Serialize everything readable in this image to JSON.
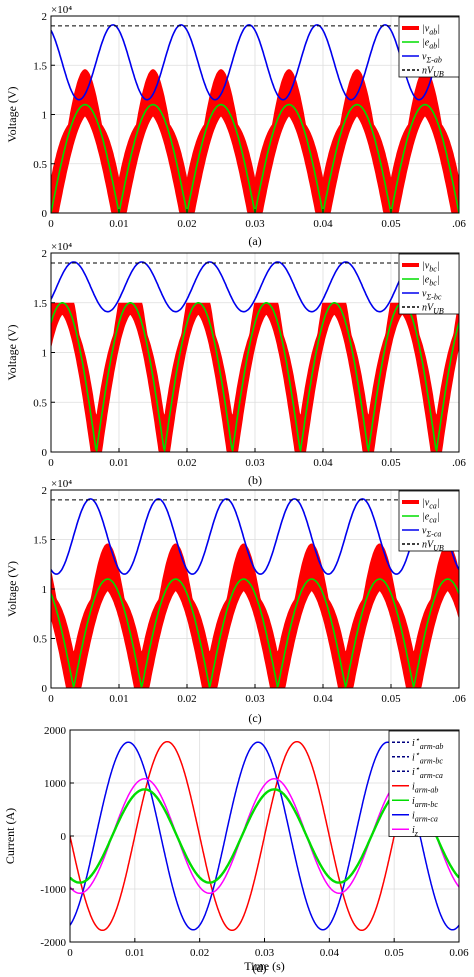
{
  "chart_data": [
    {
      "type": "line",
      "caption": "(a)",
      "ylabel": "Voltage (V)",
      "exponent": "×10⁴",
      "xlim": [
        0,
        0.06
      ],
      "ylim": [
        0,
        2
      ],
      "xticks": [
        0,
        0.01,
        0.02,
        0.03,
        0.04,
        0.05,
        0.06
      ],
      "xtick_labels": [
        "0",
        "0.01",
        "0.02",
        "0.03",
        "0.04",
        "0.05",
        ".06"
      ],
      "yticks": [
        0,
        0.5,
        1,
        1.5,
        2
      ],
      "ytick_labels": [
        "0",
        "0.5",
        "1",
        "1.5",
        "2"
      ],
      "phase_deg": 0,
      "nVUB": 1.9,
      "grid": true,
      "legend_position": "top-right",
      "legend": [
        {
          "label": "|v_ab|",
          "color": "#ff0000",
          "style": "thick"
        },
        {
          "label": "|e_ab|",
          "color": "#00dd00",
          "style": "solid"
        },
        {
          "label": "v_Σ-ab",
          "color": "#0000ee",
          "style": "solid"
        },
        {
          "label": "nV_UB",
          "color": "#000000",
          "style": "dashed"
        }
      ],
      "series_params": {
        "v_sigma": {
          "offset": 1.53,
          "amplitude": 0.38,
          "period": 0.01
        },
        "e_abs": {
          "amplitude": 1.1,
          "frequency_hz": 50
        },
        "v_abs": {
          "amplitude": 1.1,
          "frequency_hz": 50,
          "band_max": 1.5
        }
      }
    },
    {
      "type": "line",
      "caption": "(b)",
      "ylabel": "Voltage (V)",
      "exponent": "×10⁴",
      "xlim": [
        0,
        0.06
      ],
      "ylim": [
        0,
        2
      ],
      "xticks": [
        0,
        0.01,
        0.02,
        0.03,
        0.04,
        0.05,
        0.06
      ],
      "xtick_labels": [
        "0",
        "0.01",
        "0.02",
        "0.03",
        "0.04",
        "0.05",
        ".06"
      ],
      "yticks": [
        0,
        0.5,
        1,
        1.5,
        2
      ],
      "ytick_labels": [
        "0",
        "0.5",
        "1",
        "1.5",
        "2"
      ],
      "phase_deg": -120,
      "nVUB": 1.9,
      "grid": true,
      "legend_position": "top-right",
      "legend": [
        {
          "label": "|v_bc|",
          "color": "#ff0000",
          "style": "thick"
        },
        {
          "label": "|e_bc|",
          "color": "#00dd00",
          "style": "solid"
        },
        {
          "label": "v_Σ-bc",
          "color": "#0000ee",
          "style": "solid"
        },
        {
          "label": "nV_UB",
          "color": "#000000",
          "style": "dashed"
        }
      ],
      "series_params": {
        "v_sigma": {
          "offset": 1.66,
          "amplitude": 0.25,
          "period": 0.01
        },
        "e_abs": {
          "amplitude": 1.5,
          "frequency_hz": 50
        },
        "v_abs": {
          "amplitude": 1.5,
          "frequency_hz": 50,
          "band_max": 1.5
        }
      }
    },
    {
      "type": "line",
      "caption": "(c)",
      "ylabel": "Voltage (V)",
      "exponent": "×10⁴",
      "xlim": [
        0,
        0.06
      ],
      "ylim": [
        0,
        2
      ],
      "xticks": [
        0,
        0.01,
        0.02,
        0.03,
        0.04,
        0.05,
        0.06
      ],
      "xtick_labels": [
        "0",
        "0.01",
        "0.02",
        "0.03",
        "0.04",
        "0.05",
        ".06"
      ],
      "yticks": [
        0,
        0.5,
        1,
        1.5,
        2
      ],
      "ytick_labels": [
        "0",
        "0.5",
        "1",
        "1.5",
        "2"
      ],
      "phase_deg": 120,
      "nVUB": 1.9,
      "grid": true,
      "legend_position": "top-right",
      "legend": [
        {
          "label": "|v_ca|",
          "color": "#ff0000",
          "style": "thick"
        },
        {
          "label": "|e_ca|",
          "color": "#00dd00",
          "style": "solid"
        },
        {
          "label": "v_Σ-ca",
          "color": "#0000ee",
          "style": "solid"
        },
        {
          "label": "nV_UB",
          "color": "#000000",
          "style": "dashed"
        }
      ],
      "series_params": {
        "v_sigma": {
          "offset": 1.53,
          "amplitude": 0.38,
          "period": 0.01
        },
        "e_abs": {
          "amplitude": 1.1,
          "frequency_hz": 50
        },
        "v_abs": {
          "amplitude": 1.1,
          "frequency_hz": 50,
          "band_max": 1.5
        }
      }
    },
    {
      "type": "line",
      "caption": "(d)",
      "xlabel": "Time (s)",
      "ylabel": "Current (A)",
      "xlim": [
        0,
        0.06
      ],
      "ylim": [
        -2000,
        2000
      ],
      "xticks": [
        0,
        0.01,
        0.02,
        0.03,
        0.04,
        0.05,
        0.06
      ],
      "xtick_labels": [
        "0",
        "0.01",
        "0.02",
        "0.03",
        "0.04",
        "0.05",
        "0.06"
      ],
      "yticks": [
        -2000,
        -1000,
        0,
        1000,
        2000
      ],
      "ytick_labels": [
        "-2000",
        "-1000",
        "0",
        "1000",
        "2000"
      ],
      "grid": true,
      "legend_position": "top-right",
      "legend": [
        {
          "label": "i*_arm-ab",
          "color": "#000080",
          "style": "dashed"
        },
        {
          "label": "i*_arm-bc",
          "color": "#000080",
          "style": "dashed"
        },
        {
          "label": "i*_arm-ca",
          "color": "#000080",
          "style": "dashed"
        },
        {
          "label": "i_arm-ab",
          "color": "#ff0000",
          "style": "solid"
        },
        {
          "label": "i_arm-bc",
          "color": "#00dd00",
          "style": "solid"
        },
        {
          "label": "i_arm-ca",
          "color": "#0000ee",
          "style": "solid"
        },
        {
          "label": "i_z",
          "color": "#ff00ff",
          "style": "solid"
        }
      ],
      "series": [
        {
          "name": "i_arm-ab",
          "color": "#ff0000",
          "amplitude": 1780,
          "frequency_hz": 50,
          "peak_time": 0.015
        },
        {
          "name": "i_arm-ca",
          "color": "#0000ee",
          "amplitude": 1770,
          "frequency_hz": 50,
          "peak_time": 0.009
        },
        {
          "name": "i_z",
          "color": "#ff00ff",
          "amplitude": 1080,
          "frequency_hz": 50,
          "peak_time": 0.0115
        },
        {
          "name": "i_arm-bc",
          "color": "#00dd00",
          "amplitude": 880,
          "frequency_hz": 50,
          "peak_time": 0.0115
        }
      ]
    }
  ]
}
